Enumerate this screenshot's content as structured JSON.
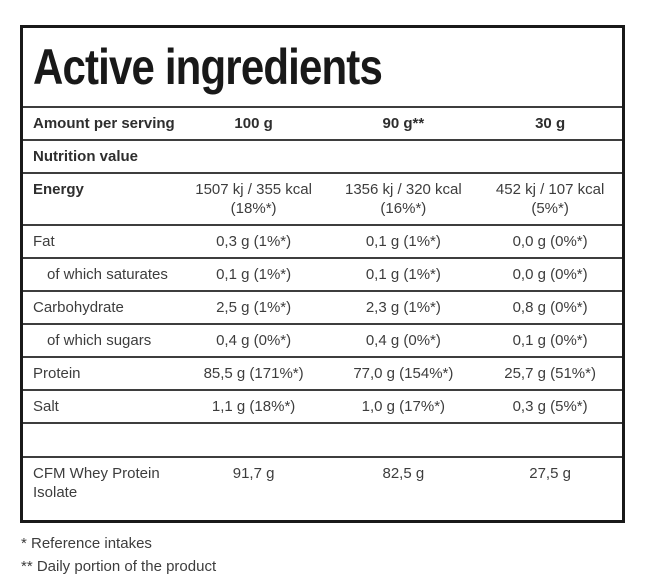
{
  "title": "Active ingredients",
  "table": {
    "header": {
      "label": "Amount per serving",
      "columns": [
        "100 g",
        "90 g**",
        "30 g"
      ]
    },
    "section_label": "Nutrition value",
    "rows": [
      {
        "label": "Energy",
        "values": [
          "1507 kj / 355 kcal\n(18%*)",
          "1356 kj / 320 kcal\n(16%*)",
          "452 kj / 107 kcal\n(5%*)"
        ]
      },
      {
        "label": "Fat",
        "values": [
          "0,3 g (1%*)",
          "0,1 g (1%*)",
          "0,0 g (0%*)"
        ]
      },
      {
        "label": "of which saturates",
        "values": [
          "0,1 g (1%*)",
          "0,1 g (1%*)",
          "0,0 g (0%*)"
        ]
      },
      {
        "label": "Carbohydrate",
        "values": [
          "2,5 g (1%*)",
          "2,3 g (1%*)",
          "0,8 g (0%*)"
        ]
      },
      {
        "label": "of which sugars",
        "values": [
          "0,4 g (0%*)",
          "0,4 g (0%*)",
          "0,1 g (0%*)"
        ]
      },
      {
        "label": "Protein",
        "values": [
          "85,5 g (171%*)",
          "77,0 g (154%*)",
          "25,7 g (51%*)"
        ]
      },
      {
        "label": "Salt",
        "values": [
          "1,1 g (18%*)",
          "1,0 g (17%*)",
          "0,3 g (5%*)"
        ]
      },
      {
        "label": "CFM Whey Protein Isolate",
        "values": [
          "91,7 g",
          "82,5 g",
          "27,5 g"
        ]
      }
    ]
  },
  "footnotes": [
    "* Reference intakes",
    "** Daily portion of the product"
  ],
  "colors": {
    "background": "#ffffff",
    "outer_border": "#191919",
    "row_divider": "#3e3e3e",
    "body_text": "#3d3d3d",
    "heading_text": "#191919"
  }
}
